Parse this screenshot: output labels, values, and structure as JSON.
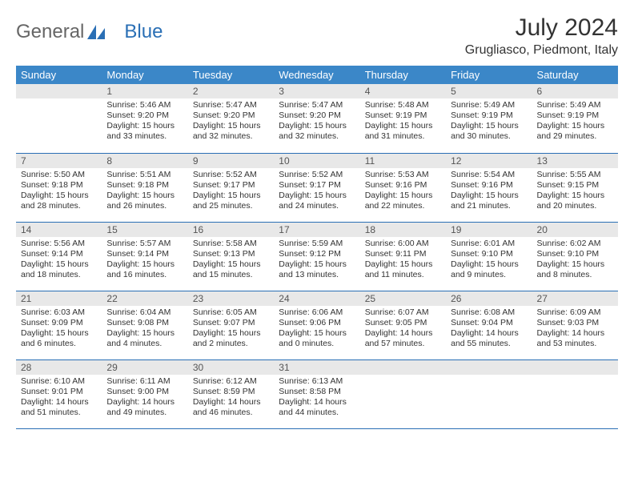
{
  "brand": {
    "left": "General",
    "right": "Blue"
  },
  "title": "July 2024",
  "location": "Grugliasco, Piedmont, Italy",
  "colors": {
    "header_bg": "#3b87c8",
    "header_text": "#ffffff",
    "daynum_bg": "#e8e8e8",
    "border": "#2a6fb5",
    "brand_accent": "#2a6fb5"
  },
  "weekdays": [
    "Sunday",
    "Monday",
    "Tuesday",
    "Wednesday",
    "Thursday",
    "Friday",
    "Saturday"
  ],
  "start_offset": 1,
  "days": [
    {
      "n": 1,
      "sunrise": "5:46 AM",
      "sunset": "9:20 PM",
      "dl": "15 hours and 33 minutes."
    },
    {
      "n": 2,
      "sunrise": "5:47 AM",
      "sunset": "9:20 PM",
      "dl": "15 hours and 32 minutes."
    },
    {
      "n": 3,
      "sunrise": "5:47 AM",
      "sunset": "9:20 PM",
      "dl": "15 hours and 32 minutes."
    },
    {
      "n": 4,
      "sunrise": "5:48 AM",
      "sunset": "9:19 PM",
      "dl": "15 hours and 31 minutes."
    },
    {
      "n": 5,
      "sunrise": "5:49 AM",
      "sunset": "9:19 PM",
      "dl": "15 hours and 30 minutes."
    },
    {
      "n": 6,
      "sunrise": "5:49 AM",
      "sunset": "9:19 PM",
      "dl": "15 hours and 29 minutes."
    },
    {
      "n": 7,
      "sunrise": "5:50 AM",
      "sunset": "9:18 PM",
      "dl": "15 hours and 28 minutes."
    },
    {
      "n": 8,
      "sunrise": "5:51 AM",
      "sunset": "9:18 PM",
      "dl": "15 hours and 26 minutes."
    },
    {
      "n": 9,
      "sunrise": "5:52 AM",
      "sunset": "9:17 PM",
      "dl": "15 hours and 25 minutes."
    },
    {
      "n": 10,
      "sunrise": "5:52 AM",
      "sunset": "9:17 PM",
      "dl": "15 hours and 24 minutes."
    },
    {
      "n": 11,
      "sunrise": "5:53 AM",
      "sunset": "9:16 PM",
      "dl": "15 hours and 22 minutes."
    },
    {
      "n": 12,
      "sunrise": "5:54 AM",
      "sunset": "9:16 PM",
      "dl": "15 hours and 21 minutes."
    },
    {
      "n": 13,
      "sunrise": "5:55 AM",
      "sunset": "9:15 PM",
      "dl": "15 hours and 20 minutes."
    },
    {
      "n": 14,
      "sunrise": "5:56 AM",
      "sunset": "9:14 PM",
      "dl": "15 hours and 18 minutes."
    },
    {
      "n": 15,
      "sunrise": "5:57 AM",
      "sunset": "9:14 PM",
      "dl": "15 hours and 16 minutes."
    },
    {
      "n": 16,
      "sunrise": "5:58 AM",
      "sunset": "9:13 PM",
      "dl": "15 hours and 15 minutes."
    },
    {
      "n": 17,
      "sunrise": "5:59 AM",
      "sunset": "9:12 PM",
      "dl": "15 hours and 13 minutes."
    },
    {
      "n": 18,
      "sunrise": "6:00 AM",
      "sunset": "9:11 PM",
      "dl": "15 hours and 11 minutes."
    },
    {
      "n": 19,
      "sunrise": "6:01 AM",
      "sunset": "9:10 PM",
      "dl": "15 hours and 9 minutes."
    },
    {
      "n": 20,
      "sunrise": "6:02 AM",
      "sunset": "9:10 PM",
      "dl": "15 hours and 8 minutes."
    },
    {
      "n": 21,
      "sunrise": "6:03 AM",
      "sunset": "9:09 PM",
      "dl": "15 hours and 6 minutes."
    },
    {
      "n": 22,
      "sunrise": "6:04 AM",
      "sunset": "9:08 PM",
      "dl": "15 hours and 4 minutes."
    },
    {
      "n": 23,
      "sunrise": "6:05 AM",
      "sunset": "9:07 PM",
      "dl": "15 hours and 2 minutes."
    },
    {
      "n": 24,
      "sunrise": "6:06 AM",
      "sunset": "9:06 PM",
      "dl": "15 hours and 0 minutes."
    },
    {
      "n": 25,
      "sunrise": "6:07 AM",
      "sunset": "9:05 PM",
      "dl": "14 hours and 57 minutes."
    },
    {
      "n": 26,
      "sunrise": "6:08 AM",
      "sunset": "9:04 PM",
      "dl": "14 hours and 55 minutes."
    },
    {
      "n": 27,
      "sunrise": "6:09 AM",
      "sunset": "9:03 PM",
      "dl": "14 hours and 53 minutes."
    },
    {
      "n": 28,
      "sunrise": "6:10 AM",
      "sunset": "9:01 PM",
      "dl": "14 hours and 51 minutes."
    },
    {
      "n": 29,
      "sunrise": "6:11 AM",
      "sunset": "9:00 PM",
      "dl": "14 hours and 49 minutes."
    },
    {
      "n": 30,
      "sunrise": "6:12 AM",
      "sunset": "8:59 PM",
      "dl": "14 hours and 46 minutes."
    },
    {
      "n": 31,
      "sunrise": "6:13 AM",
      "sunset": "8:58 PM",
      "dl": "14 hours and 44 minutes."
    }
  ],
  "labels": {
    "sunrise": "Sunrise:",
    "sunset": "Sunset:",
    "daylight": "Daylight:"
  }
}
